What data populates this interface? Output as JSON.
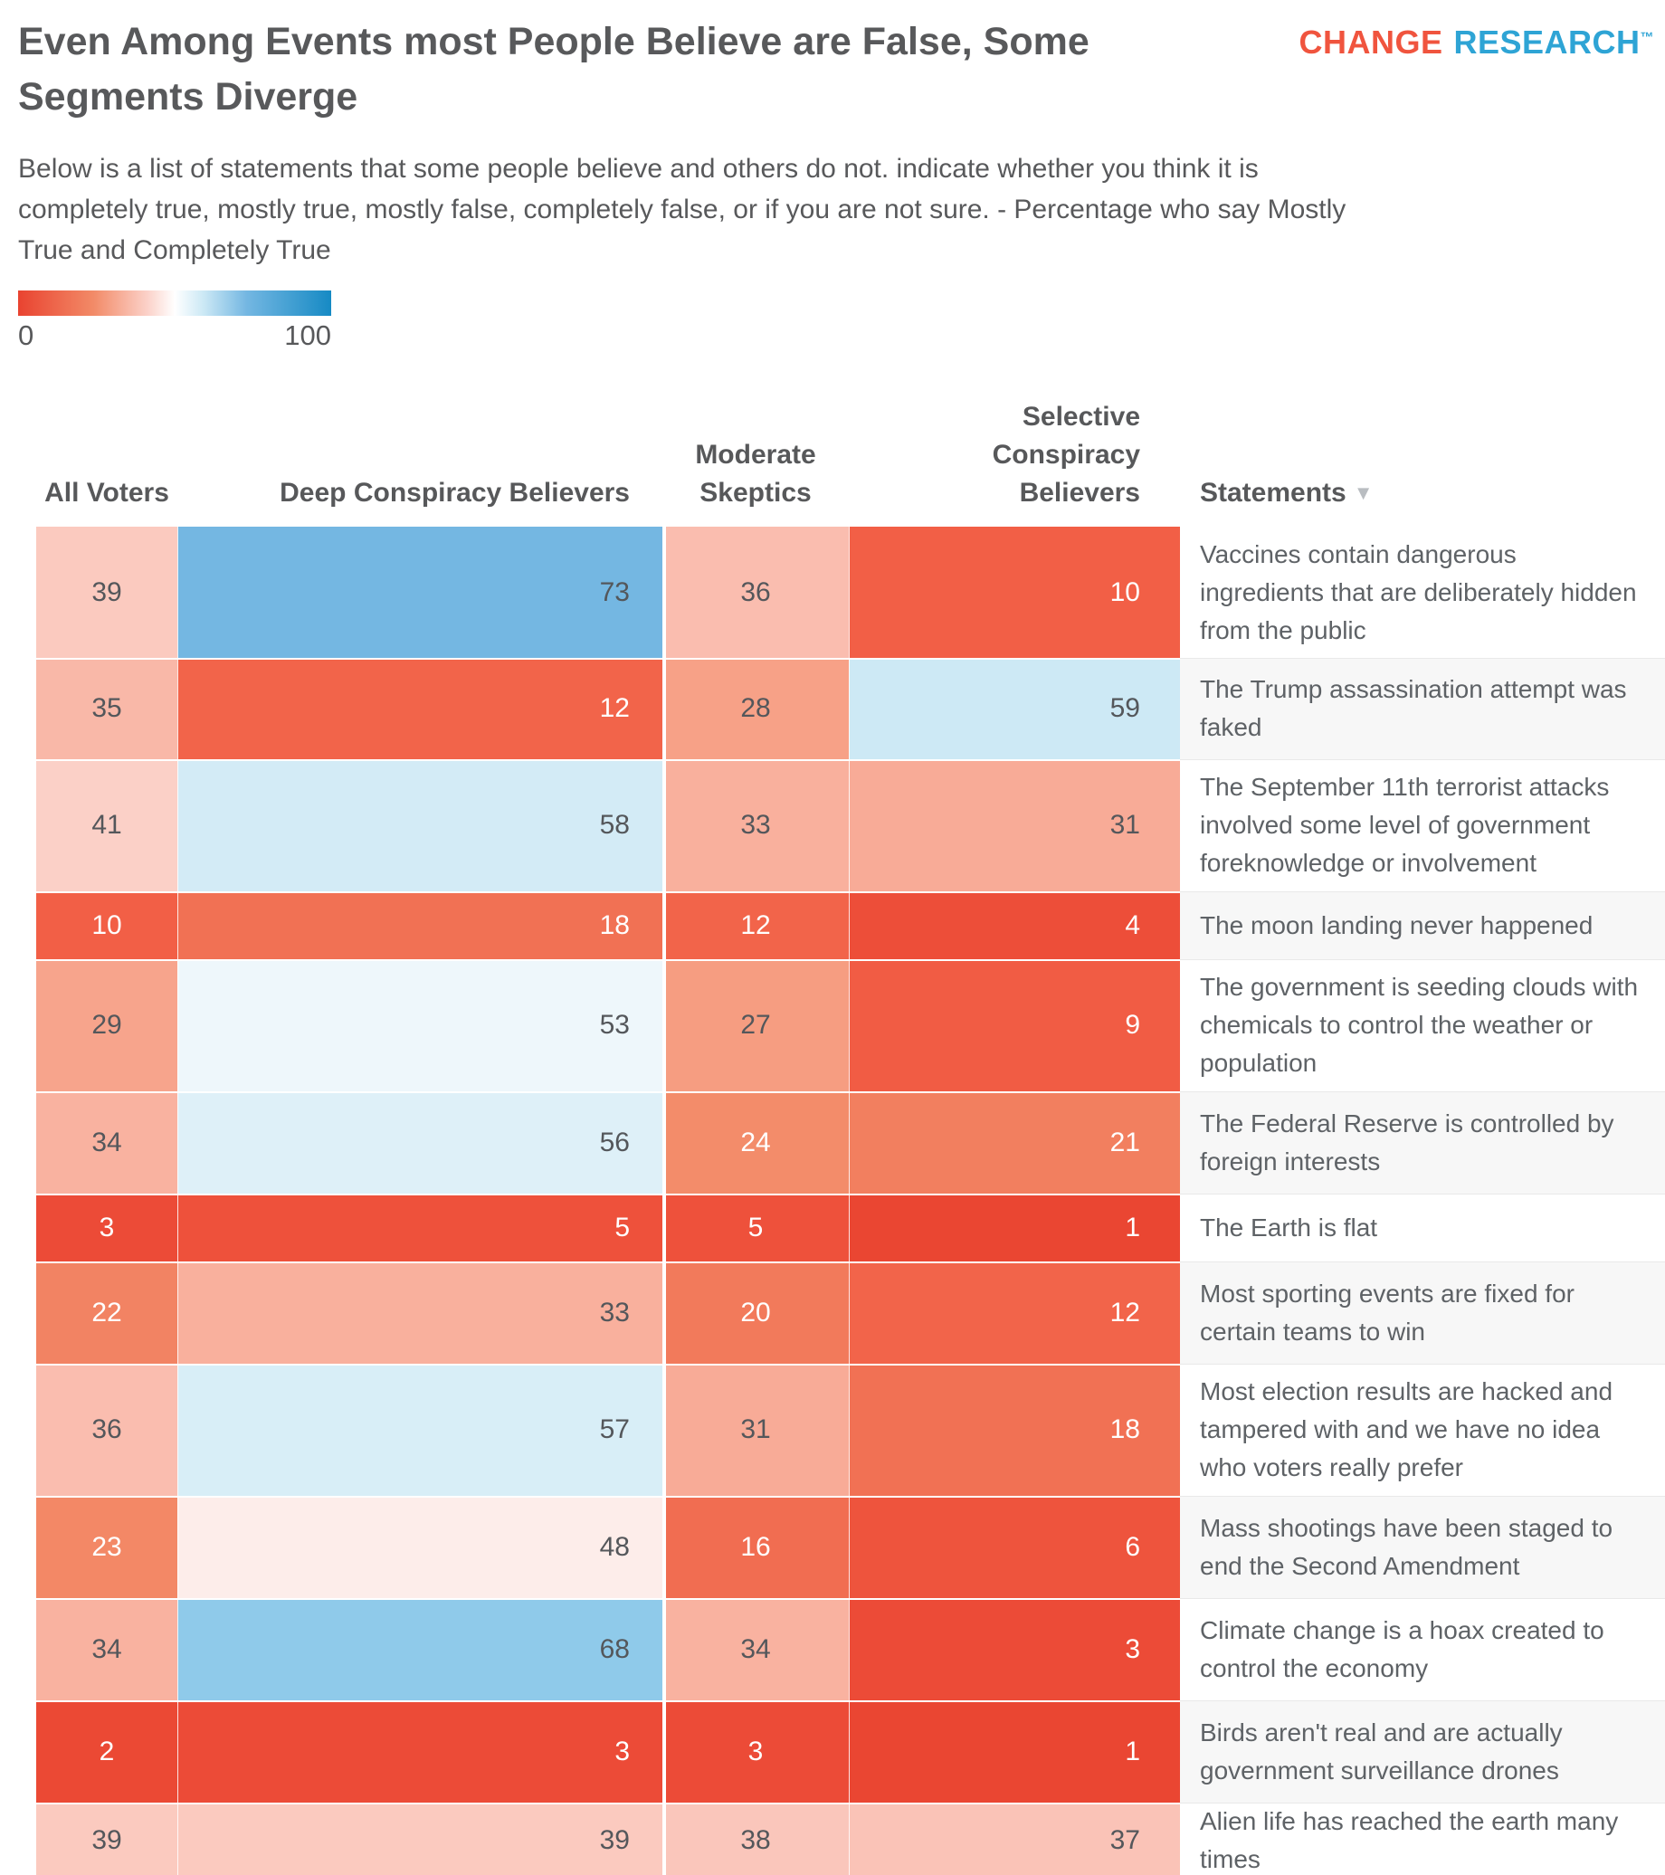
{
  "header": {
    "title": "Even Among Events most People Believe are False, Some Segments Diverge",
    "subtitle": "Below is a list of statements that some people believe and others do not. indicate whether you think it is completely true, mostly true, mostly false, completely false, or if you are not sure. - Percentage who say Mostly True and Completely True",
    "logo": {
      "word1": "CHANGE",
      "word2": "RESEARCH",
      "trademark": "™"
    }
  },
  "legend": {
    "min_label": "0",
    "max_label": "100"
  },
  "table": {
    "sort_icon": "▼",
    "columns": [
      {
        "label": "All Voters"
      },
      {
        "label": "Deep Conspiracy Believers"
      },
      {
        "label": "Moderate Skeptics"
      },
      {
        "label": "Selective Conspiracy Believers"
      },
      {
        "label": "Statements"
      }
    ]
  },
  "colors": {
    "scale_low": "#e94330",
    "scale_mid": "#ffffff",
    "scale_high": "#168ac4",
    "logo_orange": "#f0543e",
    "logo_blue": "#2ea4d5",
    "zebra_row": "#f7f7f7"
  },
  "chart_data": {
    "type": "heatmap",
    "title": "Even Among Events most People Believe are False, Some Segments Diverge",
    "subtitle": "Below is a list of statements that some people believe and others do not. indicate whether you think it is completely true, mostly true, mostly false, completely false, or if you are not sure. - Percentage who say Mostly True and Completely True",
    "columns": [
      "All Voters",
      "Deep Conspiracy Believers",
      "Moderate Skeptics",
      "Selective Conspiracy Believers"
    ],
    "row_label_column": "Statements",
    "colorscale": {
      "domain": [
        0,
        100
      ],
      "midpoint": 50,
      "low": "#e94330",
      "mid": "#ffffff",
      "high": "#168ac4"
    },
    "legend_range": [
      0,
      100
    ],
    "rows": [
      {
        "statement": "Vaccines contain dangerous ingredients that are deliberately hidden from the public",
        "values": [
          39,
          73,
          36,
          10
        ]
      },
      {
        "statement": "The Trump assassination attempt was faked",
        "values": [
          35,
          12,
          28,
          59
        ]
      },
      {
        "statement": "The September 11th terrorist attacks involved some level of government foreknowledge or involvement",
        "values": [
          41,
          58,
          33,
          31
        ]
      },
      {
        "statement": "The moon landing never happened",
        "values": [
          10,
          18,
          12,
          4
        ]
      },
      {
        "statement": "The government is seeding clouds with chemicals to control the weather or population",
        "values": [
          29,
          53,
          27,
          9
        ]
      },
      {
        "statement": "The Federal Reserve is controlled by foreign interests",
        "values": [
          34,
          56,
          24,
          21
        ]
      },
      {
        "statement": "The Earth is flat",
        "values": [
          3,
          5,
          5,
          1
        ]
      },
      {
        "statement": "Most sporting events are fixed for certain teams to win",
        "values": [
          22,
          33,
          20,
          12
        ]
      },
      {
        "statement": "Most election results are hacked and tampered with and we have no idea who voters really prefer",
        "values": [
          36,
          57,
          31,
          18
        ]
      },
      {
        "statement": "Mass shootings have been staged to end the Second Amendment",
        "values": [
          23,
          48,
          16,
          6
        ]
      },
      {
        "statement": "Climate change is a hoax created to control the economy",
        "values": [
          34,
          68,
          34,
          3
        ]
      },
      {
        "statement": "Birds aren't real and are actually government surveillance drones",
        "values": [
          2,
          3,
          3,
          1
        ]
      },
      {
        "statement": "Alien life has reached the earth many times",
        "values": [
          39,
          39,
          38,
          37
        ]
      }
    ]
  }
}
